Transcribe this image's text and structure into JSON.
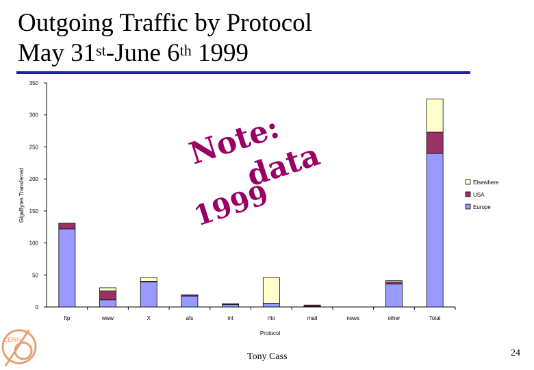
{
  "slide": {
    "title_line1": "Outgoing Traffic by Protocol",
    "title_line2_a": "May 31",
    "title_line2_sup1": "st",
    "title_line2_b": "-June 6",
    "title_line2_sup2": "th",
    "title_line2_c": " 1999",
    "presenter": "Tony Cass",
    "page_number": "24",
    "logo_text": "CERN",
    "accent_color": "#1f1fb4"
  },
  "chart_data": {
    "type": "bar",
    "stacked": true,
    "title": "",
    "xlabel": "Protocol",
    "ylabel": "GigaBytes Transferred",
    "ylim": [
      0,
      350
    ],
    "yticks": [
      0,
      50,
      100,
      150,
      200,
      250,
      300,
      350
    ],
    "grid": false,
    "legend_position": "right",
    "categories": [
      "ftp",
      "www",
      "X",
      "afs",
      "int",
      "rfio",
      "mail",
      "news",
      "other",
      "Total"
    ],
    "series": [
      {
        "name": "Europe",
        "color": "#9999ff",
        "values": [
          122,
          11,
          39,
          17,
          4,
          6,
          1,
          0,
          36,
          240
        ]
      },
      {
        "name": "USA",
        "color": "#993366",
        "values": [
          9,
          14,
          1,
          2,
          1,
          0,
          2,
          0,
          3,
          33
        ]
      },
      {
        "name": "Elsewhere",
        "color": "#ffffcc",
        "values": [
          0,
          5,
          6,
          0,
          0,
          40,
          0,
          0,
          2,
          52
        ]
      }
    ],
    "legend_order": [
      "Elsewhere",
      "USA",
      "Europe"
    ],
    "annotation": {
      "line1": "Note:",
      "line2": "data",
      "line3": "1999",
      "color": "#990066"
    }
  }
}
